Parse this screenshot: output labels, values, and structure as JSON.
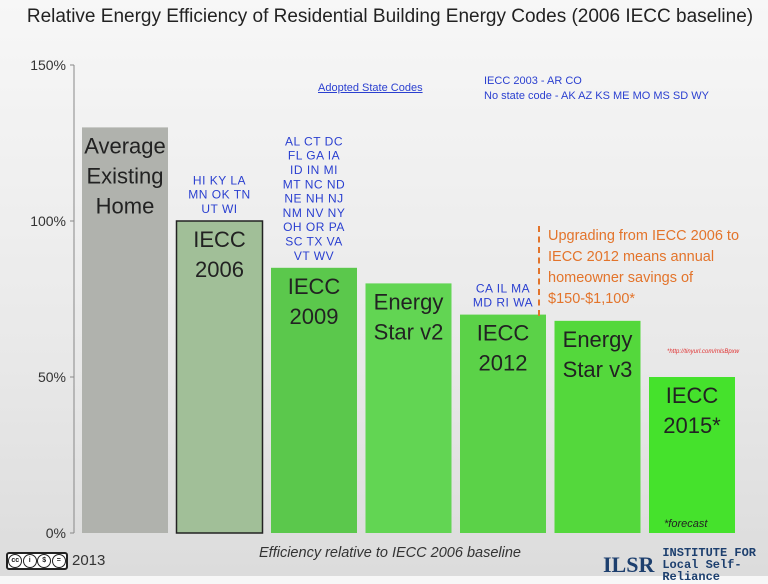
{
  "chart_data": {
    "type": "bar",
    "title": "Relative Energy Efficiency of Residential Building Energy Codes (2006 IECC baseline)",
    "xlabel": "Efficiency relative to IECC 2006 baseline",
    "ylabel": "",
    "ylim": [
      0,
      150
    ],
    "yticks": [
      "0%",
      "50%",
      "100%",
      "150%"
    ],
    "ytick_values": [
      0,
      50,
      100,
      150
    ],
    "grid": false,
    "categories": [
      [
        "Average",
        "Existing",
        "Home"
      ],
      [
        "IECC",
        "2006"
      ],
      [
        "IECC",
        "2009"
      ],
      [
        "Energy",
        "Star v2"
      ],
      [
        "IECC",
        "2012"
      ],
      [
        "Energy",
        "Star v3"
      ],
      [
        "IECC",
        "2015*"
      ]
    ],
    "values": [
      130,
      100,
      85,
      80,
      70,
      68,
      50
    ],
    "colors": [
      "#b0b2ad",
      "#a1bf98",
      "#5bc84c",
      "#62d553",
      "#5bd248",
      "#54d83c",
      "#45e22c"
    ],
    "state_labels": [
      [],
      [
        "HI  KY  LA",
        "MN  OK TN",
        "UT  WI"
      ],
      [
        "AL  CT  DC",
        "FL  GA   IA",
        "ID   IN   MI",
        "MT NC ND",
        "NE  NH  NJ",
        "NM NV NY",
        "OH  OR  PA",
        "SC  TX  VA",
        "VT WV"
      ],
      [],
      [
        "CA  IL  MA",
        "MD  RI  WA"
      ],
      [],
      []
    ]
  },
  "notes": {
    "adopted": "Adopted State Codes",
    "codes_line1": "IECC 2003 - AR CO",
    "codes_line2": "No state code -  AK AZ KS ME MO MS SD WY",
    "callout": "Upgrading from IECC 2006 to IECC 2012 means annual homeowner savings of $150-$1,100*",
    "source": "*http://tinyurl.com/mlsBpxw",
    "forecast": "*forecast"
  },
  "footer": {
    "year": "2013",
    "license": "cc BY NC ND",
    "org_mark": "ILSR",
    "org_line1": "INSTITUTE FOR",
    "org_line2": "Local Self-Reliance"
  },
  "colors": {
    "annotation_blue": "#2a3fd0",
    "callout_orange": "#e3742b"
  }
}
